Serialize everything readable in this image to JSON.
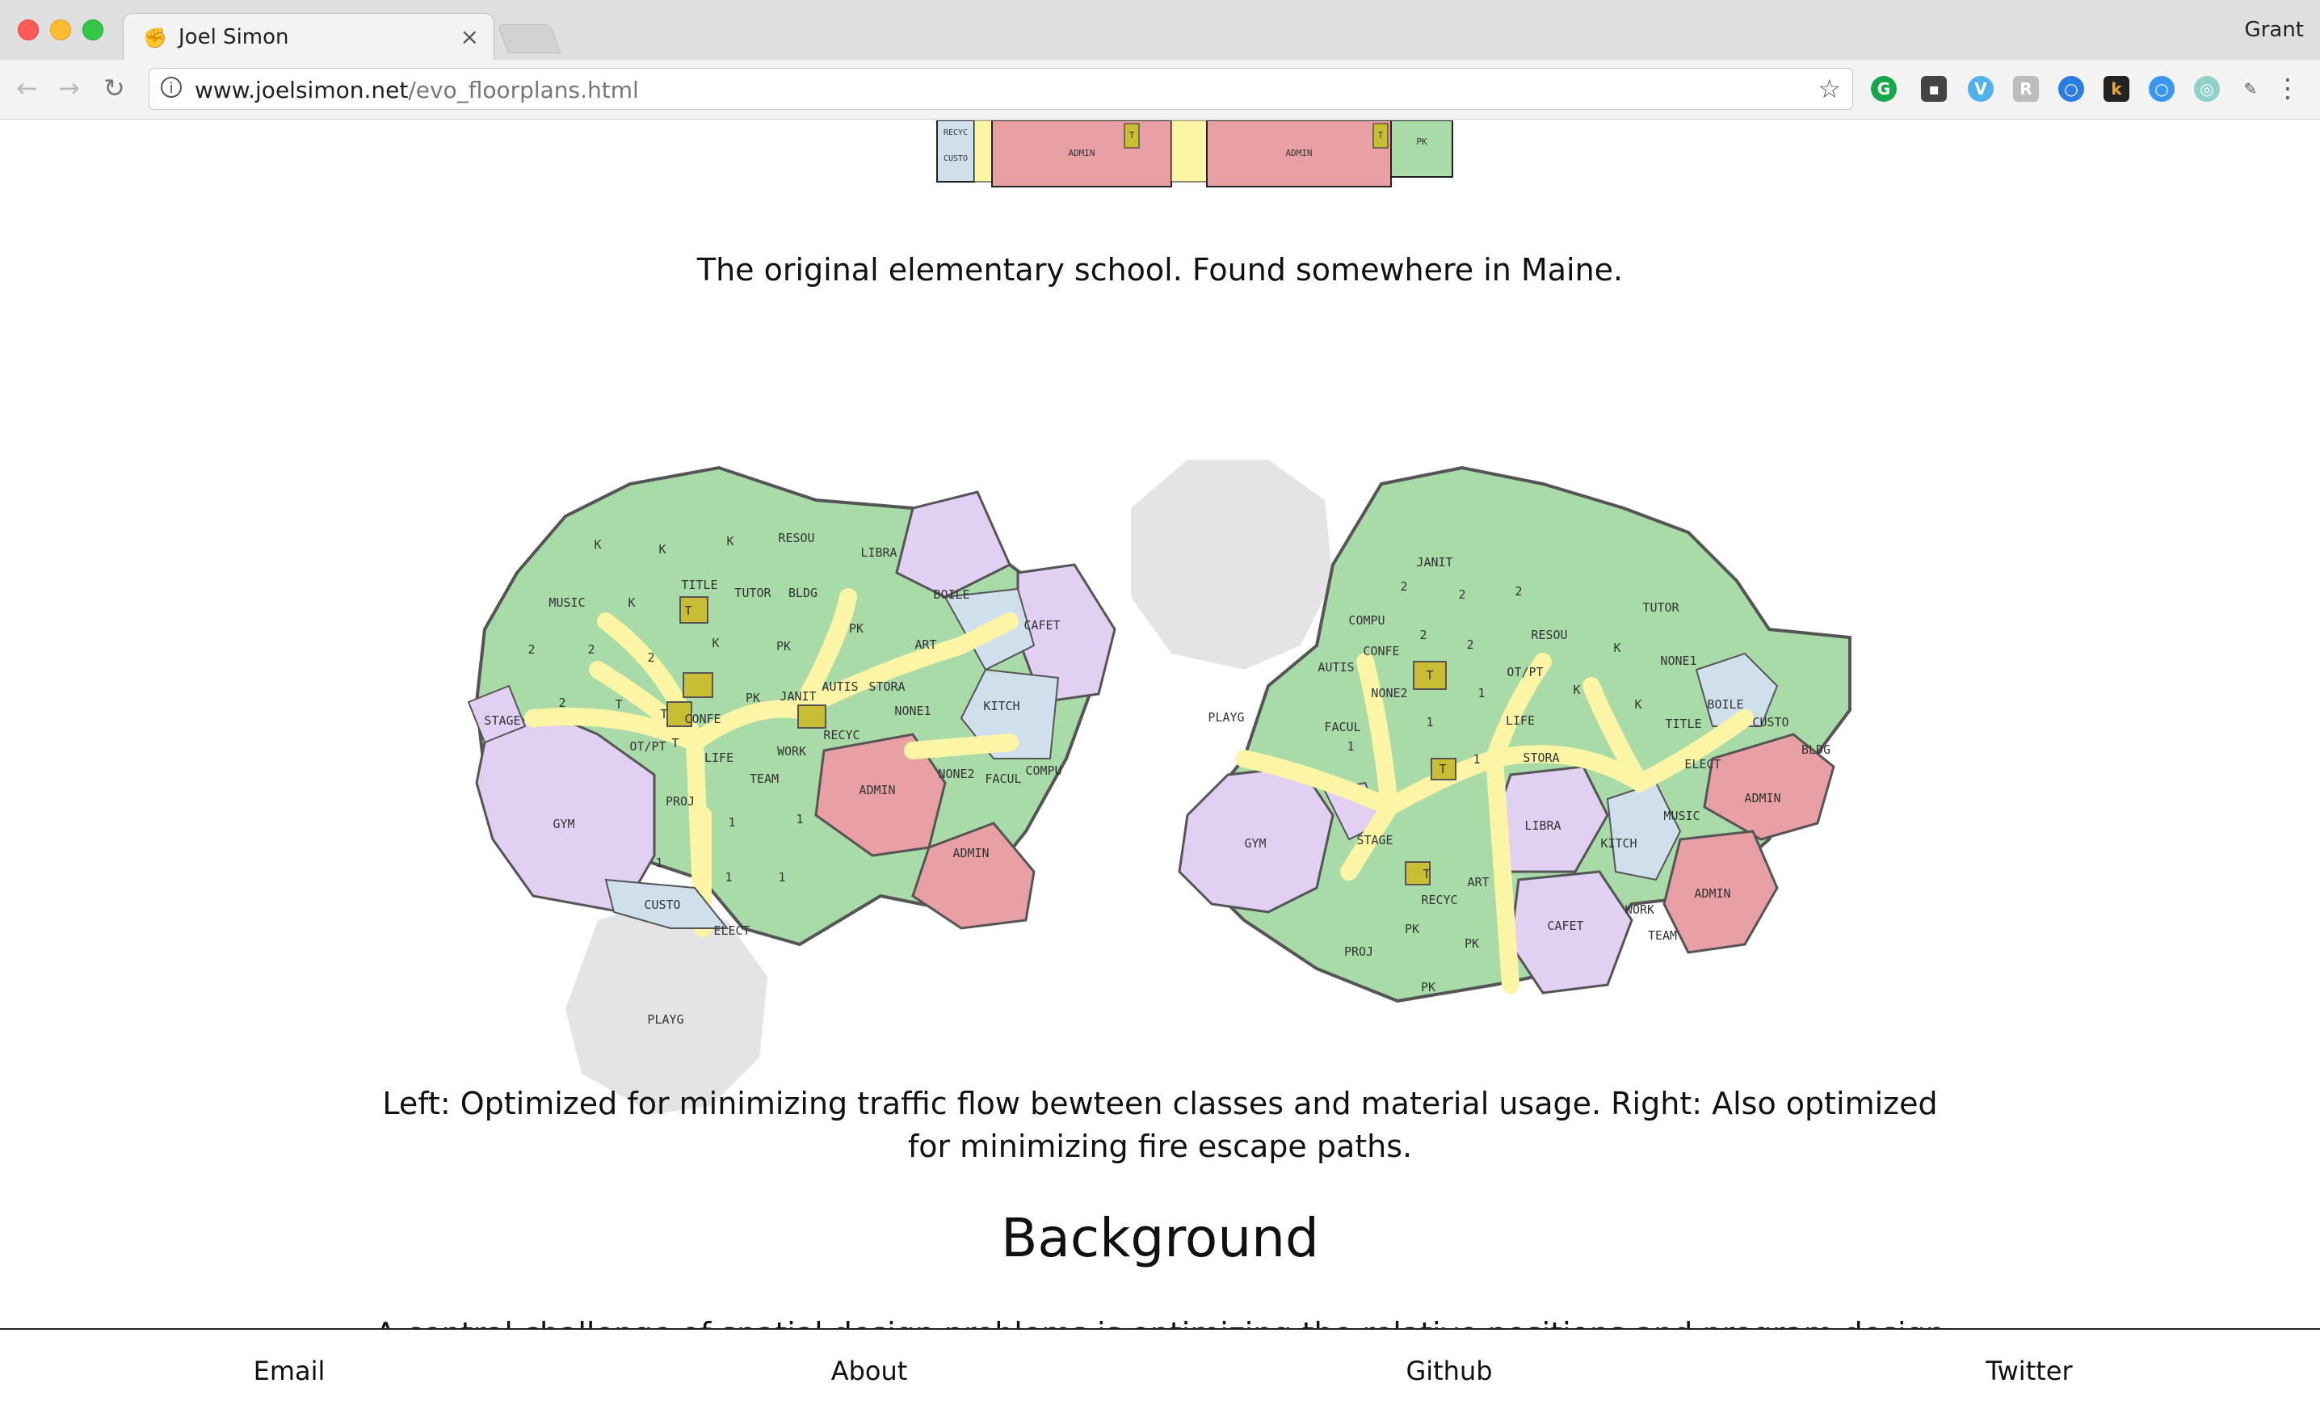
{
  "browser": {
    "tab_title": "Joel Simon",
    "tab_close": "×",
    "profile_name": "Grant",
    "url_host": "www.joelsimon.net",
    "url_path": "/evo_floorplans.html",
    "extensions": [
      "grammarly-icon",
      "camera-extension-icon",
      "vimeo-icon",
      "readability-icon",
      "chrome-circle-icon",
      "k-extension-icon",
      "blue-circle-icon",
      "green-circle-icon",
      "pin-icon"
    ]
  },
  "page": {
    "top_plan_labels": [
      "RECYC",
      "CUSTO",
      "ADMIN",
      "T",
      "ADMIN",
      "T",
      "PK"
    ],
    "caption_original": "The original elementary school. Found somewhere in Maine.",
    "left_plan_labels": [
      "K",
      "K",
      "K",
      "RESOU",
      "LIBRA",
      "BOILE",
      "CAFET",
      "MUSIC",
      "K",
      "TITLE",
      "TUTOR",
      "BLDG",
      "T",
      "2",
      "2",
      "2",
      "K",
      "PK",
      "PK",
      "ART",
      "STAGE",
      "2",
      "T",
      "PK",
      "JANIT",
      "AUTIS",
      "STORA",
      "NONE1",
      "KITCH",
      "T",
      "CONFE",
      "OT/PT",
      "T",
      "RECYC",
      "LIFE",
      "WORK",
      "NONE2",
      "FACUL",
      "COMPU",
      "GYM",
      "PROJ",
      "TEAM",
      "ADMIN",
      "1",
      "1",
      "1",
      "ADMIN",
      "1",
      "1",
      "CUSTO",
      "ELECT",
      "PLAYG"
    ],
    "right_plan_labels": [
      "JANIT",
      "2",
      "2",
      "2",
      "COMPU",
      "2",
      "RESOU",
      "TUTOR",
      "CONFE",
      "2",
      "K",
      "NONE1",
      "PLAYG",
      "AUTIS",
      "T",
      "OT/PT",
      "K",
      "NONE2",
      "1",
      "LIFE",
      "BOILE",
      "FACUL",
      "1",
      "1",
      "K",
      "TITLE",
      "CUSTO",
      "BLDG",
      "STORA",
      "ELECT",
      "1",
      "T",
      "GYM",
      "STAGE",
      "LIBRA",
      "KITCH",
      "MUSIC",
      "ADMIN",
      "T",
      "ART",
      "RECYC",
      "PK",
      "CAFET",
      "WORK",
      "ADMIN",
      "PROJ",
      "PK",
      "TEAM",
      "PK"
    ],
    "caption_optimized_line1": "Left: Optimized for minimizing traffic flow bewteen classes and material usage. Right: Also optimized",
    "caption_optimized_line2": "for minimizing fire escape paths.",
    "section_heading": "Background",
    "cut_text": "A central challenge of spatial design problems is optimizing the relative positions and program design"
  },
  "footer": {
    "links": [
      "Email",
      "About",
      "Github",
      "Twitter"
    ]
  },
  "colors": {
    "classroom": "#a8dba8",
    "hall": "#fbf5a5",
    "admin": "#e8a0a4",
    "public": "#e2d0f2",
    "service": "#cfe0ec",
    "toilet": "#c9bd33",
    "playground": "#e4e4e4"
  }
}
